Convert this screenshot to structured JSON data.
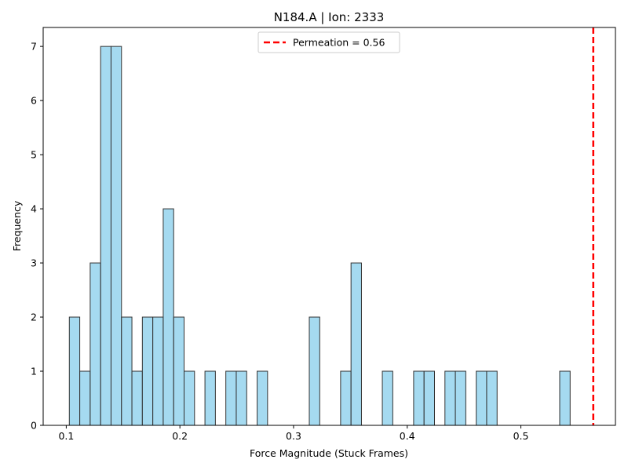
{
  "chart_data": {
    "type": "bar",
    "title": "N184.A | Ion: 2333",
    "xlabel": "Force Magnitude (Stuck Frames)",
    "ylabel": "Frequency",
    "xlim": [
      0.0797,
      0.5832
    ],
    "ylim": [
      0,
      7.35
    ],
    "xticks": [
      0.1,
      0.2,
      0.3,
      0.4,
      0.5
    ],
    "xtick_labels": [
      "0.1",
      "0.2",
      "0.3",
      "0.4",
      "0.5"
    ],
    "yticks": [
      0,
      1,
      2,
      3,
      4,
      5,
      6,
      7
    ],
    "ytick_labels": [
      "0",
      "1",
      "2",
      "3",
      "4",
      "5",
      "6",
      "7"
    ],
    "grid": false,
    "bin_start": 0.1027,
    "bin_width": 0.00918,
    "counts": [
      2,
      1,
      3,
      7,
      7,
      2,
      1,
      2,
      2,
      4,
      2,
      1,
      0,
      1,
      0,
      1,
      1,
      0,
      1,
      0,
      0,
      0,
      0,
      2,
      0,
      0,
      1,
      3,
      0,
      0,
      1,
      0,
      0,
      1,
      1,
      0,
      1,
      1,
      0,
      1,
      1,
      0,
      0,
      0,
      0,
      0,
      0,
      1
    ],
    "bar_color": "#87ceeb",
    "bar_edge_color": "#333333",
    "reference_line": {
      "x": 0.5637,
      "label": "Permeation = 0.56",
      "color": "#ff0000",
      "style": "dashed"
    },
    "legend_position": "upper center"
  }
}
